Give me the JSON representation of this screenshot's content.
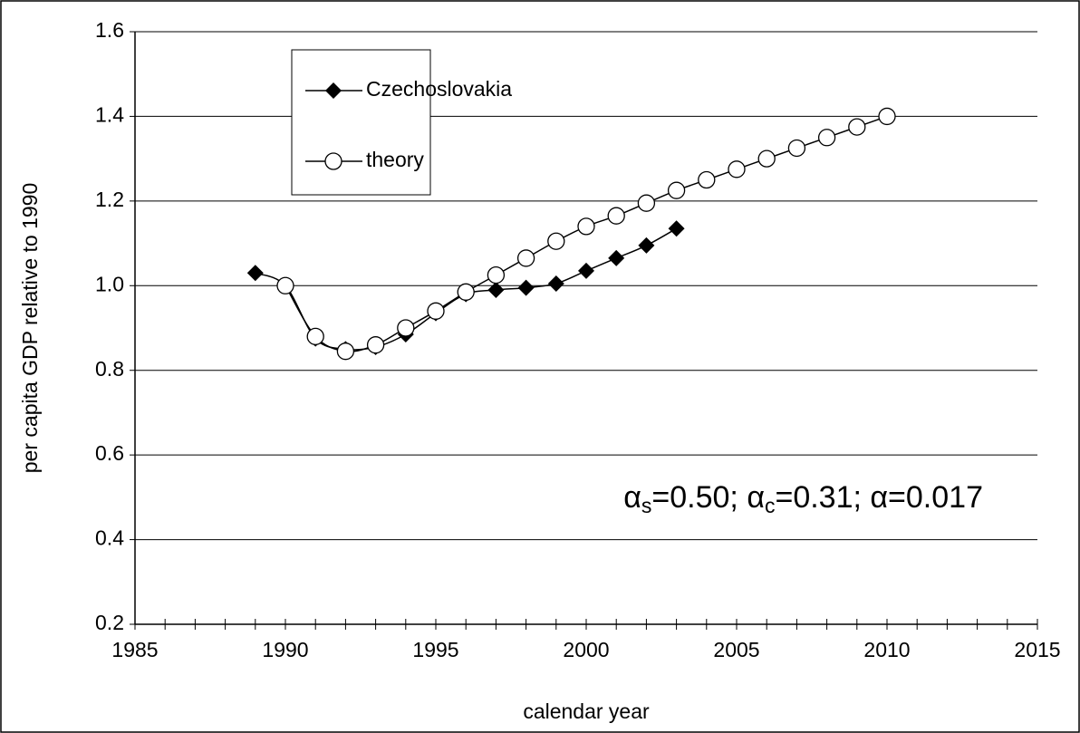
{
  "chart_data": {
    "type": "line",
    "xlabel": "calendar year",
    "ylabel": "per capita GDP relative to 1990",
    "xlim": [
      1985,
      2015
    ],
    "xticks": [
      1985,
      1990,
      1995,
      2000,
      2005,
      2010,
      2015
    ],
    "ylim": [
      0.2,
      1.6
    ],
    "yticks": [
      0.2,
      0.4,
      0.6,
      0.8,
      1.0,
      1.2,
      1.4,
      1.6
    ],
    "grid": true,
    "legend": "upper left",
    "annotation": [
      "α",
      "s",
      "=0.50; α",
      "c",
      "=0.31; α=0.017"
    ],
    "series": [
      {
        "name": "Czechoslovakia",
        "color": "#000000",
        "marker": "diamond",
        "x": [
          1989,
          1990,
          1991,
          1992,
          1993,
          1994,
          1995,
          1996,
          1997,
          1998,
          1999,
          2000,
          2001,
          2002,
          2003
        ],
        "values": [
          1.03,
          1.0,
          0.875,
          0.85,
          0.855,
          0.885,
          0.935,
          0.98,
          0.99,
          0.995,
          1.005,
          1.035,
          1.065,
          1.095,
          1.135
        ]
      },
      {
        "name": "theory",
        "color": "#000000",
        "marker": "circle",
        "x": [
          1990,
          1991,
          1992,
          1993,
          1994,
          1995,
          1996,
          1997,
          1998,
          1999,
          2000,
          2001,
          2002,
          2003,
          2004,
          2005,
          2006,
          2007,
          2008,
          2009,
          2010
        ],
        "values": [
          1.0,
          0.88,
          0.845,
          0.86,
          0.9,
          0.94,
          0.985,
          1.025,
          1.065,
          1.105,
          1.14,
          1.165,
          1.195,
          1.225,
          1.25,
          1.275,
          1.3,
          1.325,
          1.35,
          1.375,
          1.4
        ]
      }
    ]
  }
}
